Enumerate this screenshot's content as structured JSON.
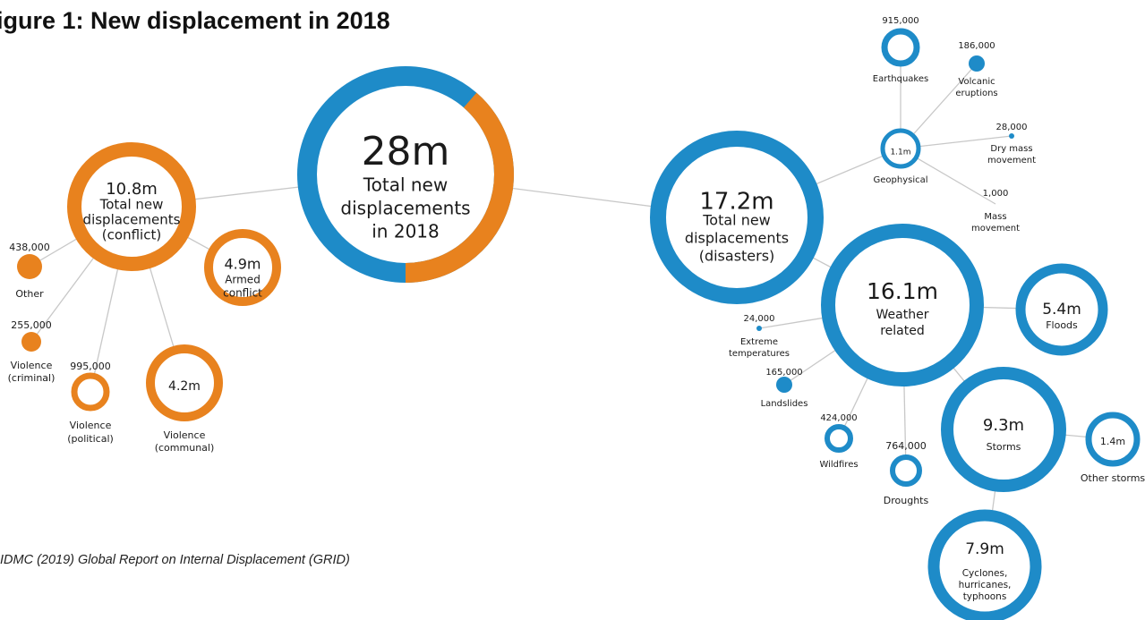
{
  "title": "igure 1: New displacement in 2018",
  "source": "IDMC (2019) Global Report on Internal Displacement (GRID)",
  "colors": {
    "conflict": "#E8821E",
    "disaster": "#1E8BC8",
    "link": "#c8c8c8",
    "text": "#1a1a1a"
  },
  "nodes": {
    "total": {
      "value": "28m",
      "label_lines": [
        "Total new",
        "displacements",
        "in 2018"
      ],
      "conflict_share": 0.386
    },
    "conflict": {
      "value": "10.8m",
      "label_lines": [
        "Total new",
        "displacements",
        "(conflict)"
      ]
    },
    "armed": {
      "value": "4.9m",
      "label_lines": [
        "Armed",
        "conflict"
      ]
    },
    "communal": {
      "value": "4.2m",
      "label_lines": [
        "Violence",
        "(communal)"
      ]
    },
    "political": {
      "value": "995,000",
      "label_lines": [
        "Violence",
        "(political)"
      ]
    },
    "criminal": {
      "value": "255,000",
      "label_lines": [
        "Violence",
        "(criminal)"
      ]
    },
    "other": {
      "value": "438,000",
      "label_lines": [
        "Other"
      ]
    },
    "disasters": {
      "value": "17.2m",
      "label_lines": [
        "Total new",
        "displacements",
        "(disasters)"
      ]
    },
    "geophysical": {
      "value": "1.1m",
      "label_lines": [
        "Geophysical"
      ]
    },
    "earthquakes": {
      "value": "915,000",
      "label_lines": [
        "Earthquakes"
      ]
    },
    "volcanic": {
      "value": "186,000",
      "label_lines": [
        "Volcanic",
        "eruptions"
      ]
    },
    "drymass": {
      "value": "28,000",
      "label_lines": [
        "Dry mass",
        "movement"
      ]
    },
    "mass": {
      "value": "1,000",
      "label_lines": [
        "Mass",
        "movement"
      ]
    },
    "weather": {
      "value": "16.1m",
      "label_lines": [
        "Weather",
        "related"
      ]
    },
    "floods": {
      "value": "5.4m",
      "label_lines": [
        "Floods"
      ]
    },
    "storms": {
      "value": "9.3m",
      "label_lines": [
        "Storms"
      ]
    },
    "otherstorms": {
      "value": "1.4m",
      "label_lines": [
        "Other storms"
      ]
    },
    "cyclones": {
      "value": "7.9m",
      "label_lines": [
        "Cyclones,",
        "hurricanes,",
        "typhoons"
      ]
    },
    "extreme": {
      "value": "24,000",
      "label_lines": [
        "Extreme",
        "temperatures"
      ]
    },
    "landslides": {
      "value": "165,000",
      "label_lines": [
        "Landslides"
      ]
    },
    "wildfires": {
      "value": "424,000",
      "label_lines": [
        "Wildfires"
      ]
    },
    "droughts": {
      "value": "764,000",
      "label_lines": [
        "Droughts"
      ]
    }
  }
}
